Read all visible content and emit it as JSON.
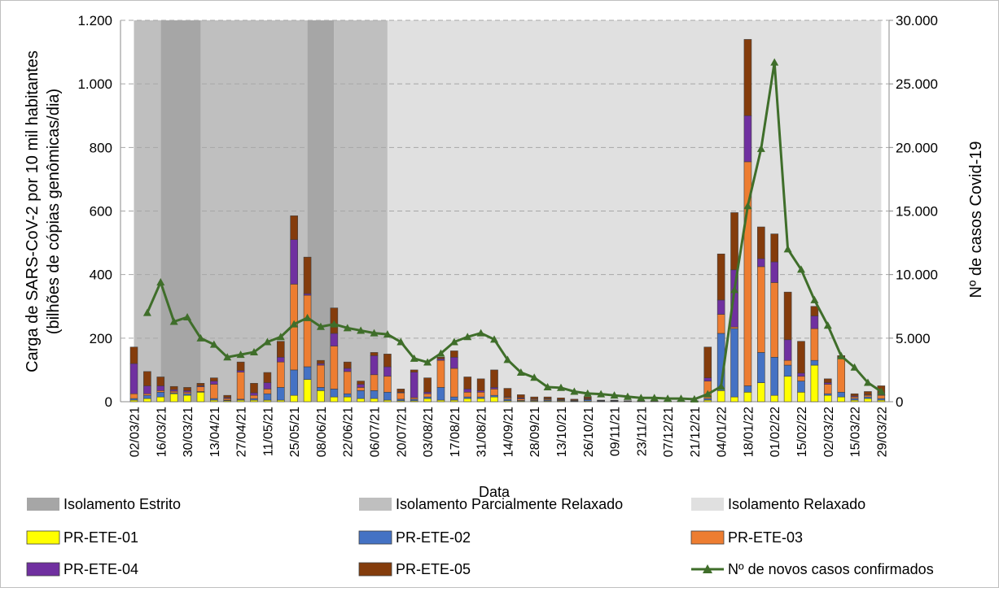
{
  "chart_data": {
    "type": "stacked_bar_line",
    "ylabel": [
      "Carga de SARS-CoV-2 por 10 mil habitantes",
      "(bilhões de cópias genômicas/dia)"
    ],
    "y2label": "Nº de casos Covid-19",
    "xlabel": "Data",
    "categories": [
      "02/03/21",
      null,
      "16/03/21",
      null,
      "30/03/21",
      null,
      "13/04/21",
      null,
      "27/04/21",
      null,
      "11/05/21",
      null,
      "25/05/21",
      null,
      "08/06/21",
      null,
      "22/06/21",
      null,
      "06/07/21",
      null,
      "20/07/21",
      null,
      "03/08/21",
      null,
      "17/08/21",
      null,
      "31/08/21",
      null,
      "14/09/21",
      null,
      "28/09/21",
      null,
      "13/10/21",
      null,
      "26/10/21",
      null,
      "09/11/21",
      null,
      "23/11/21",
      null,
      "07/12/21",
      null,
      "21/12/21",
      null,
      "04/01/22",
      null,
      "18/01/22",
      null,
      "01/02/22",
      null,
      "15/02/22",
      null,
      "02/03/22",
      null,
      "15/03/22",
      null,
      "29/03/22"
    ],
    "ylim": [
      0,
      1200
    ],
    "yticks": [
      0,
      200,
      400,
      600,
      800,
      {
        "value": 1000,
        "label": "1.000"
      },
      {
        "value": 1200,
        "label": "1.200"
      }
    ],
    "y2lim": [
      0,
      30000
    ],
    "y2ticks": [
      0,
      {
        "value": 5000,
        "label": "5.000"
      },
      {
        "value": 10000,
        "label": "10.000"
      },
      {
        "value": 15000,
        "label": "15.000"
      },
      {
        "value": 20000,
        "label": "20.000"
      },
      {
        "value": 25000,
        "label": "25.000"
      },
      {
        "value": 30000,
        "label": "30.000"
      }
    ],
    "grid": true,
    "regions": [
      {
        "name": "Isolamento Estrito",
        "color": "#a6a6a6",
        "spans": [
          [
            2,
            5
          ],
          [
            13,
            15
          ]
        ]
      },
      {
        "name": "Isolamento Parcialmente Relaxado",
        "color": "#bfbfbf",
        "spans": [
          [
            0,
            2
          ],
          [
            5,
            13
          ],
          [
            15,
            19
          ]
        ]
      },
      {
        "name": "Isolamento Relaxado",
        "color": "#e0e0e0",
        "spans": [
          [
            19,
            56
          ]
        ]
      }
    ],
    "series": [
      {
        "name": "PR-ETE-01",
        "color": "#ffff00",
        "values": [
          5,
          10,
          15,
          25,
          20,
          30,
          5,
          3,
          5,
          5,
          5,
          5,
          20,
          70,
          35,
          15,
          15,
          10,
          10,
          5,
          3,
          3,
          10,
          5,
          5,
          10,
          10,
          15,
          3,
          2,
          2,
          2,
          2,
          1,
          2,
          1,
          1,
          1,
          1,
          1,
          1,
          1,
          1,
          5,
          35,
          15,
          30,
          60,
          20,
          80,
          30,
          115,
          20,
          15,
          5,
          10,
          5
        ]
      },
      {
        "name": "PR-ETE-02",
        "color": "#4472c4",
        "values": [
          5,
          10,
          15,
          3,
          5,
          2,
          5,
          2,
          3,
          5,
          20,
          40,
          80,
          40,
          10,
          25,
          10,
          25,
          25,
          25,
          5,
          5,
          5,
          40,
          10,
          5,
          5,
          5,
          5,
          2,
          2,
          3,
          2,
          1,
          4,
          1,
          1,
          0,
          0,
          0,
          0,
          0,
          0,
          5,
          180,
          215,
          20,
          95,
          120,
          35,
          35,
          15,
          5,
          15,
          5,
          5,
          5
        ]
      },
      {
        "name": "PR-ETE-03",
        "color": "#ed7d31",
        "values": [
          15,
          5,
          5,
          5,
          5,
          15,
          45,
          5,
          85,
          10,
          15,
          80,
          270,
          225,
          70,
          135,
          70,
          10,
          50,
          50,
          20,
          5,
          10,
          85,
          90,
          15,
          15,
          20,
          5,
          5,
          3,
          3,
          2,
          2,
          2,
          1,
          1,
          1,
          1,
          1,
          1,
          1,
          1,
          55,
          60,
          5,
          705,
          270,
          235,
          15,
          15,
          100,
          30,
          105,
          5,
          5,
          10
        ]
      },
      {
        "name": "PR-ETE-04",
        "color": "#7030a0",
        "values": [
          95,
          25,
          15,
          5,
          5,
          3,
          10,
          3,
          5,
          8,
          20,
          15,
          140,
          5,
          5,
          40,
          10,
          10,
          60,
          30,
          2,
          80,
          5,
          5,
          35,
          10,
          5,
          5,
          2,
          3,
          2,
          2,
          1,
          1,
          2,
          1,
          1,
          0,
          0,
          0,
          0,
          0,
          0,
          10,
          45,
          180,
          145,
          25,
          65,
          65,
          10,
          40,
          5,
          5,
          3,
          2,
          2
        ]
      },
      {
        "name": "PR-ETE-05",
        "color": "#843c0c",
        "values": [
          52,
          45,
          28,
          10,
          10,
          8,
          10,
          7,
          27,
          30,
          32,
          50,
          75,
          115,
          10,
          80,
          20,
          10,
          10,
          40,
          10,
          7,
          45,
          5,
          20,
          38,
          37,
          55,
          27,
          10,
          6,
          5,
          5,
          3,
          5,
          1,
          1,
          1,
          1,
          1,
          1,
          1,
          1,
          97,
          145,
          180,
          240,
          100,
          88,
          150,
          100,
          30,
          12,
          5,
          7,
          10,
          28
        ]
      },
      {
        "name": "Nº de novos casos confirmados",
        "color": "#3f6e2a",
        "axis": "y2",
        "values": [
          null,
          7000,
          9400,
          6300,
          6650,
          5000,
          4500,
          3500,
          3700,
          3900,
          4700,
          5100,
          6100,
          6600,
          5900,
          6100,
          5800,
          5600,
          5400,
          5300,
          4700,
          3400,
          3100,
          3800,
          4700,
          5100,
          5400,
          4900,
          3300,
          2300,
          1900,
          1150,
          1100,
          800,
          650,
          600,
          500,
          400,
          300,
          300,
          250,
          250,
          200,
          600,
          1200,
          8800,
          15400,
          19900,
          26700,
          12000,
          10400,
          8000,
          6000,
          3600,
          2700,
          1500,
          800
        ]
      }
    ]
  }
}
